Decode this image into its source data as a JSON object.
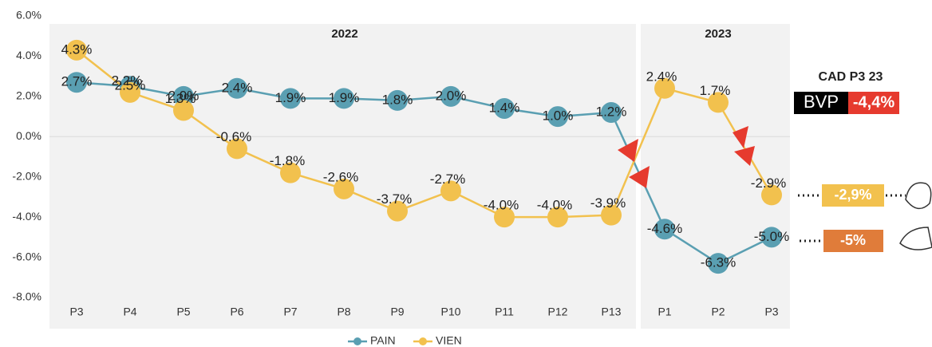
{
  "chart_data": {
    "type": "line",
    "categories": [
      "P3",
      "P4",
      "P5",
      "P6",
      "P7",
      "P8",
      "P9",
      "P10",
      "P11",
      "P12",
      "P13",
      "P1",
      "P2",
      "P3"
    ],
    "series": [
      {
        "name": "PAIN",
        "color": "#5a9fb2",
        "values": [
          2.7,
          2.5,
          2.0,
          2.4,
          1.9,
          1.9,
          1.8,
          2.0,
          1.4,
          1.0,
          1.2,
          -4.6,
          -6.3,
          -5.0
        ],
        "value_labels": [
          "2.7%",
          "2.5%",
          "2.0%",
          "2.4%",
          "1.9%",
          "1.9%",
          "1.8%",
          "2.0%",
          "1.4%",
          "1.0%",
          "1.2%",
          "-4.6%",
          "-6.3%",
          "-5.0%"
        ]
      },
      {
        "name": "VIEN",
        "color": "#f2c14e",
        "values": [
          4.3,
          2.2,
          1.3,
          -0.6,
          -1.8,
          -2.6,
          -3.7,
          -2.7,
          -4.0,
          -4.0,
          -3.9,
          2.4,
          1.7,
          -2.9
        ],
        "value_labels": [
          "4.3%",
          "2.2%",
          "1.3%",
          "-0.6%",
          "-1.8%",
          "-2.6%",
          "-3.7%",
          "-2.7%",
          "-4.0%",
          "-4.0%",
          "-3.9%",
          "2.4%",
          "1.7%",
          "-2.9%"
        ]
      }
    ],
    "ylim": [
      -8,
      6
    ],
    "yticks": [
      {
        "value": -8,
        "label": "-8.0%"
      },
      {
        "value": -6,
        "label": "-6.0%"
      },
      {
        "value": -4,
        "label": "-4.0%"
      },
      {
        "value": -2,
        "label": "-2.0%"
      },
      {
        "value": 0,
        "label": "0.0%"
      },
      {
        "value": 2,
        "label": "2.0%"
      },
      {
        "value": 4,
        "label": "4.0%"
      },
      {
        "value": 6,
        "label": "6.0%"
      }
    ],
    "annotations": [
      "2022",
      "2023",
      "CAD P3 23",
      "BVP",
      "-4,4%",
      "-2,9%",
      "-5%"
    ]
  }
}
